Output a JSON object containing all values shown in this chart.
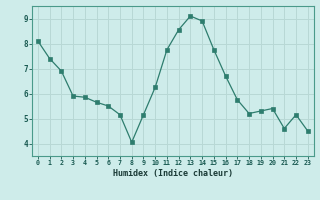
{
  "x": [
    0,
    1,
    2,
    3,
    4,
    5,
    6,
    7,
    8,
    9,
    10,
    11,
    12,
    13,
    14,
    15,
    16,
    17,
    18,
    19,
    20,
    21,
    22,
    23
  ],
  "y": [
    8.1,
    7.4,
    6.9,
    5.9,
    5.85,
    5.65,
    5.5,
    5.15,
    4.05,
    5.15,
    6.25,
    7.75,
    8.55,
    9.1,
    8.9,
    7.75,
    6.7,
    5.75,
    5.2,
    5.3,
    5.4,
    4.6,
    5.15,
    4.5
  ],
  "line_color": "#2e7d6e",
  "marker": "s",
  "marker_size": 2.2,
  "bg_color": "#ceecea",
  "grid_color": "#b8d8d5",
  "axis_color": "#4a9a8a",
  "tick_color": "#1a5a52",
  "xlabel": "Humidex (Indice chaleur)",
  "xlabel_color": "#1a3a36",
  "ylim": [
    3.5,
    9.5
  ],
  "yticks": [
    4,
    5,
    6,
    7,
    8,
    9
  ],
  "xticks": [
    0,
    1,
    2,
    3,
    4,
    5,
    6,
    7,
    8,
    9,
    10,
    11,
    12,
    13,
    14,
    15,
    16,
    17,
    18,
    19,
    20,
    21,
    22,
    23
  ],
  "xtick_labels": [
    "0",
    "1",
    "2",
    "3",
    "4",
    "5",
    "6",
    "7",
    "8",
    "9",
    "10",
    "11",
    "12",
    "13",
    "14",
    "15",
    "16",
    "17",
    "18",
    "19",
    "20",
    "21",
    "22",
    "23"
  ]
}
